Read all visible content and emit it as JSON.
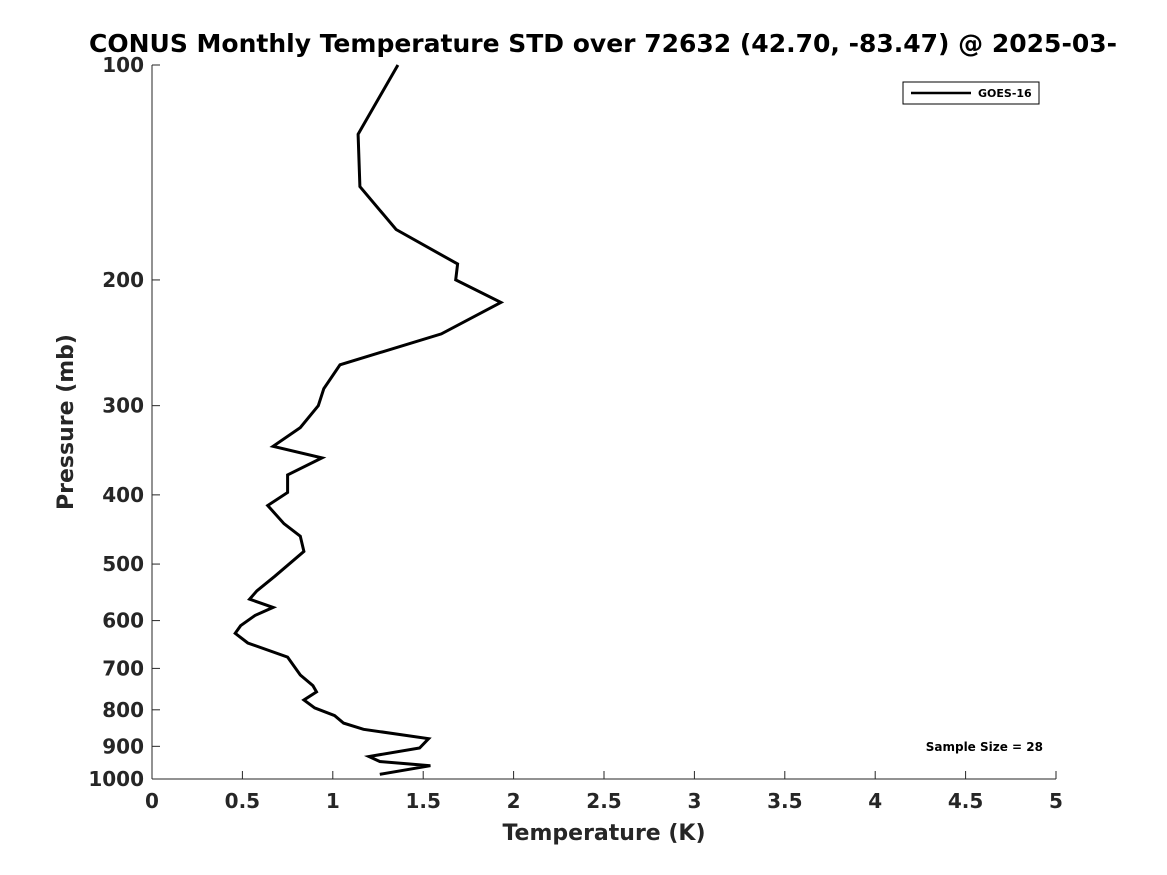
{
  "chart_data": {
    "type": "line",
    "title": "CONUS Monthly Temperature STD over 72632 (42.70, -83.47) @ 2025-03-",
    "xlabel": "Temperature (K)",
    "ylabel": "Pressure (mb)",
    "xlim": [
      0,
      5
    ],
    "ylim": [
      100,
      1000
    ],
    "yscale": "log",
    "y_reversed": true,
    "grid": false,
    "legend_position": "top-right",
    "xticks": [
      "0",
      "0.5",
      "1",
      "1.5",
      "2",
      "2.5",
      "3",
      "3.5",
      "4",
      "4.5",
      "5"
    ],
    "yticks": [
      "100",
      "200",
      "300",
      "400",
      "500",
      "600",
      "700",
      "800",
      "900",
      "1000"
    ],
    "annotation": "Sample Size = 28",
    "series": [
      {
        "name": "GOES-16",
        "color": "#000000",
        "points": [
          [
            1.36,
            100
          ],
          [
            1.14,
            125
          ],
          [
            1.15,
            148
          ],
          [
            1.35,
            170
          ],
          [
            1.69,
            190
          ],
          [
            1.68,
            200
          ],
          [
            1.93,
            215
          ],
          [
            1.6,
            238
          ],
          [
            1.04,
            263
          ],
          [
            0.95,
            284
          ],
          [
            0.92,
            300
          ],
          [
            0.82,
            322
          ],
          [
            0.67,
            342
          ],
          [
            0.94,
            355
          ],
          [
            0.75,
            375
          ],
          [
            0.75,
            397
          ],
          [
            0.64,
            414
          ],
          [
            0.73,
            439
          ],
          [
            0.82,
            457
          ],
          [
            0.84,
            480
          ],
          [
            0.68,
            520
          ],
          [
            0.58,
            545
          ],
          [
            0.54,
            560
          ],
          [
            0.67,
            575
          ],
          [
            0.57,
            590
          ],
          [
            0.49,
            610
          ],
          [
            0.46,
            625
          ],
          [
            0.53,
            645
          ],
          [
            0.75,
            675
          ],
          [
            0.82,
            715
          ],
          [
            0.89,
            740
          ],
          [
            0.91,
            755
          ],
          [
            0.84,
            775
          ],
          [
            0.9,
            795
          ],
          [
            1.01,
            815
          ],
          [
            1.06,
            835
          ],
          [
            1.17,
            852
          ],
          [
            1.53,
            878
          ],
          [
            1.48,
            905
          ],
          [
            1.2,
            930
          ],
          [
            1.26,
            945
          ],
          [
            1.54,
            958
          ],
          [
            1.26,
            985
          ]
        ]
      }
    ]
  }
}
